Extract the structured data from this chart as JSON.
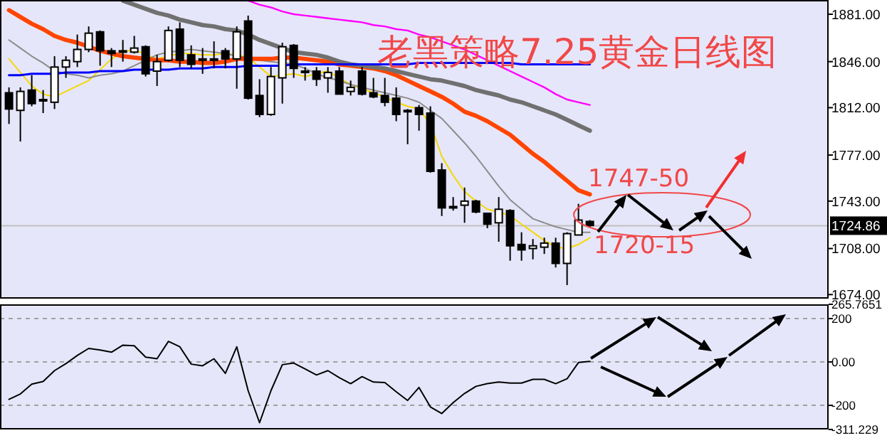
{
  "chart_data": [
    {
      "type": "candlestick",
      "title": "老黑策略7.25黄金日线图",
      "annotations": [
        "1747-50",
        "1720-15"
      ],
      "tick_labels": "y",
      "categories": [
        null,
        null,
        null,
        null,
        null,
        null,
        null,
        null,
        null,
        null,
        null,
        null,
        null,
        null,
        null,
        null,
        null,
        null,
        null,
        null,
        null,
        null,
        null,
        null,
        null,
        null,
        null,
        null,
        null,
        null,
        null,
        null,
        null,
        null,
        null,
        null,
        null,
        null,
        null,
        null,
        null,
        null,
        null,
        null,
        null,
        null,
        null,
        null,
        null,
        null,
        null,
        null
      ],
      "ohlc": [
        [
          1823,
          1827,
          1800,
          1811
        ],
        [
          1810,
          1827,
          1787,
          1824
        ],
        [
          1825,
          1836,
          1813,
          1815
        ],
        [
          1817,
          1825,
          1808,
          1818
        ],
        [
          1816,
          1850,
          1811,
          1842
        ],
        [
          1842,
          1850,
          1834,
          1847
        ],
        [
          1846,
          1866,
          1842,
          1855
        ],
        [
          1855,
          1872,
          1853,
          1867
        ],
        [
          1868,
          1869,
          1843,
          1854
        ],
        [
          1854,
          1856,
          1842,
          1852
        ],
        [
          1853,
          1862,
          1846,
          1854
        ],
        [
          1853,
          1865,
          1852,
          1856
        ],
        [
          1857,
          1858,
          1835,
          1837
        ],
        [
          1839,
          1851,
          1828,
          1846
        ],
        [
          1847,
          1872,
          1846,
          1869
        ],
        [
          1870,
          1875,
          1842,
          1847
        ],
        [
          1851,
          1858,
          1841,
          1844
        ],
        [
          1848,
          1856,
          1837,
          1847
        ],
        [
          1847,
          1861,
          1841,
          1848
        ],
        [
          1854,
          1856,
          1841,
          1848
        ],
        [
          1848,
          1872,
          1826,
          1868
        ],
        [
          1876,
          1880,
          1818,
          1819
        ],
        [
          1821,
          1833,
          1805,
          1807
        ],
        [
          1807,
          1842,
          1806,
          1835
        ],
        [
          1834,
          1860,
          1815,
          1857
        ],
        [
          1858,
          1859,
          1834,
          1841
        ],
        [
          1839,
          1842,
          1832,
          1838
        ],
        [
          1839,
          1842,
          1828,
          1833
        ],
        [
          1834,
          1842,
          1823,
          1838
        ],
        [
          1839,
          1842,
          1822,
          1822
        ],
        [
          1824,
          1832,
          1821,
          1827
        ],
        [
          1839,
          1842,
          1821,
          1822
        ],
        [
          1823,
          1834,
          1819,
          1820
        ],
        [
          1821,
          1834,
          1813,
          1816
        ],
        [
          1819,
          1827,
          1802,
          1807
        ],
        [
          1810,
          1811,
          1785,
          1809
        ],
        [
          1812,
          1814,
          1795,
          1807
        ],
        [
          1808,
          1813,
          1764,
          1765
        ],
        [
          1766,
          1771,
          1732,
          1738
        ],
        [
          1739,
          1746,
          1736,
          1739
        ],
        [
          1740,
          1753,
          1727,
          1743
        ],
        [
          1743,
          1744,
          1734,
          1735
        ],
        [
          1734,
          1734,
          1723,
          1726
        ],
        [
          1727,
          1746,
          1713,
          1737
        ],
        [
          1736,
          1737,
          1699,
          1710
        ],
        [
          1711,
          1720,
          1699,
          1707
        ],
        [
          1708,
          1715,
          1700,
          1710
        ],
        [
          1709,
          1716,
          1704,
          1712
        ],
        [
          1712,
          1716,
          1694,
          1697
        ],
        [
          1697,
          1720,
          1681,
          1719
        ],
        [
          1718,
          1741,
          1718,
          1729
        ],
        [
          1728,
          1729,
          1724,
          1725
        ]
      ],
      "series": [
        {
          "type": "line",
          "color": "#f5d800",
          "values": [
            1848,
            1838,
            1828,
            1822,
            1820,
            1824,
            1828,
            1832,
            1840,
            1848,
            1853,
            1855,
            1851,
            1848,
            1850,
            1852,
            1852,
            1851,
            1851,
            1852,
            1851,
            1849,
            1842,
            1835,
            1836,
            1837,
            1835,
            1837,
            1839,
            1834,
            1829,
            1826,
            1823,
            1820,
            1816,
            1813,
            1811,
            1800,
            1776,
            1762,
            1750,
            1743,
            1737,
            1735,
            1732,
            1726,
            1720,
            1714,
            1709,
            1708,
            1711,
            1716
          ]
        },
        {
          "type": "line",
          "color": "#8c8c8c",
          "values": [
            1862,
            1856,
            1850,
            1845,
            1839,
            1837,
            1836,
            1834,
            1836,
            1837,
            1839,
            1843,
            1847,
            1851,
            1853,
            1854,
            1855,
            1854,
            1853,
            1852,
            1850,
            1849,
            1847,
            1846,
            1845,
            1844,
            1841,
            1837,
            1834,
            1832,
            1829,
            1827,
            1825,
            1823,
            1821,
            1819,
            1816,
            1810,
            1804,
            1795,
            1786,
            1776,
            1765,
            1754,
            1744,
            1737,
            1730,
            1727,
            1724,
            1722,
            1720,
            1720
          ]
        },
        {
          "type": "line",
          "color": "#ff4500",
          "values": [
            1884,
            1879,
            1874,
            1870,
            1865,
            1862,
            1860,
            1857,
            1854,
            1852,
            1850,
            1849,
            1848,
            1847,
            1847,
            1846,
            1846,
            1845,
            1845,
            1846,
            1848,
            1848,
            1848,
            1848,
            1849,
            1849,
            1848,
            1847,
            1846,
            1844,
            1843,
            1842,
            1841,
            1839,
            1836,
            1832,
            1828,
            1824,
            1820,
            1815,
            1809,
            1806,
            1802,
            1797,
            1792,
            1785,
            1778,
            1772,
            1765,
            1758,
            1751,
            1748
          ]
        },
        {
          "type": "line",
          "color": "#707070",
          "values": [
            null,
            null,
            null,
            null,
            null,
            null,
            null,
            null,
            null,
            null,
            1891,
            1888,
            1885,
            1882,
            1880,
            1877,
            1875,
            1873,
            1872,
            1870,
            1869,
            1866,
            1862,
            1859,
            1856,
            1853,
            1852,
            1851,
            1849,
            1846,
            1844,
            1843,
            1842,
            1841,
            1839,
            1837,
            1835,
            1833,
            1832,
            1830,
            1828,
            1825,
            1823,
            1821,
            1818,
            1816,
            1813,
            1810,
            1807,
            1803,
            1799,
            1795
          ]
        },
        {
          "type": "line",
          "color": "#ff00ff",
          "values": [
            null,
            null,
            null,
            null,
            null,
            null,
            null,
            null,
            null,
            null,
            null,
            null,
            null,
            null,
            null,
            null,
            null,
            null,
            null,
            null,
            null,
            1891,
            1888,
            1886,
            1883,
            1881,
            1880,
            1879,
            1878,
            1877,
            1876,
            1875,
            1873,
            1872,
            1870,
            1869,
            1866,
            1864,
            1861,
            1858,
            1855,
            1851,
            1847,
            1843,
            1839,
            1835,
            1831,
            1827,
            1822,
            1818,
            1816,
            1814
          ]
        },
        {
          "type": "line",
          "color": "#0000ff",
          "values": [
            1836,
            1836,
            1837,
            1837,
            1837,
            1838,
            1838,
            1838,
            1839,
            1839,
            1839,
            1840,
            1840,
            1840,
            1840,
            1841,
            1841,
            1841,
            1842,
            1842,
            1842,
            1843,
            1843,
            1843,
            1843,
            1844,
            1844,
            1844,
            1844,
            1844,
            1844,
            1844,
            1844,
            1844,
            1844,
            1844,
            1845,
            1845,
            1845,
            1845,
            1845,
            1845,
            1845,
            1845,
            1845,
            1844,
            1844,
            1844,
            1844,
            1844,
            1844,
            1844
          ]
        }
      ],
      "ref_lines": [
        {
          "axis": "y",
          "value": 1724.86,
          "label": "1724.86",
          "color": "#c0c0c0"
        }
      ],
      "ylim": [
        1671,
        1891.5
      ],
      "yticks": [
        {
          "value": 1881,
          "label": "1881.00"
        },
        {
          "value": 1846,
          "label": "1846.00"
        },
        {
          "value": 1812,
          "label": "1812.00"
        },
        {
          "value": 1777,
          "label": "1777.00"
        },
        {
          "value": 1743,
          "label": "1743.00"
        },
        {
          "value": 1708,
          "label": "1708.00"
        },
        {
          "value": 1674,
          "label": "1674.00"
        }
      ]
    },
    {
      "type": "line",
      "tick_labels": "y",
      "grid": "y",
      "color": "#000000",
      "categories": [
        null,
        null,
        null,
        null,
        null,
        null,
        null,
        null,
        null,
        null,
        null,
        null,
        null,
        null,
        null,
        null,
        null,
        null,
        null,
        null,
        null,
        null,
        null,
        null,
        null,
        null,
        null,
        null,
        null,
        null,
        null,
        null,
        null,
        null,
        null,
        null,
        null,
        null,
        null,
        null,
        null,
        null,
        null,
        null,
        null,
        null,
        null,
        null,
        null,
        null,
        null,
        null
      ],
      "values": [
        -172.5,
        -147.5,
        -102.5,
        -90,
        -40,
        -7.5,
        30,
        62.5,
        55,
        45,
        77.5,
        75,
        22.5,
        15,
        95,
        70,
        -10,
        -17.5,
        15,
        -52.5,
        70,
        -132.5,
        -280,
        -132.5,
        -12.5,
        -5,
        -32.5,
        -60,
        -40,
        -72.5,
        -100,
        -67.5,
        -92.5,
        -95,
        -137.5,
        -177.5,
        -117.5,
        -207.5,
        -237.5,
        -187.5,
        -145,
        -112.5,
        -100,
        -92.5,
        -97.5,
        -97.5,
        -80,
        -80,
        -100,
        -77.5,
        -2.5,
        2.5
      ],
      "ylim": [
        -311.229,
        265.7651
      ],
      "yticks": [
        {
          "value": 265.7651,
          "label": "265.7651"
        },
        200,
        {
          "value": 0,
          "label": "0.00"
        },
        -200,
        {
          "value": -311.229,
          "label": "-311.229"
        }
      ]
    }
  ]
}
